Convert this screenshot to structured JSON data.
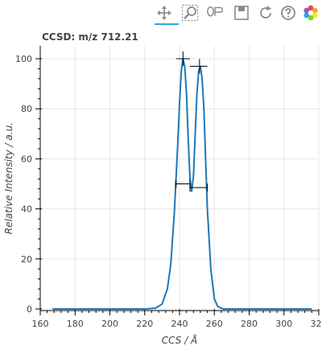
{
  "toolbar": {
    "tools": [
      {
        "name": "pan",
        "icon": "pan-icon",
        "active": true
      },
      {
        "name": "box-zoom",
        "icon": "box-zoom-icon",
        "active": false
      },
      {
        "name": "lasso",
        "icon": "lasso-select-icon",
        "active": false
      },
      {
        "name": "save",
        "icon": "save-icon",
        "active": false
      },
      {
        "name": "reset",
        "icon": "reset-icon",
        "active": false
      },
      {
        "name": "help",
        "icon": "help-icon",
        "active": false
      },
      {
        "name": "bokeh-logo",
        "icon": "bokeh-logo-icon",
        "active": false
      }
    ],
    "active_color": "#26aae1",
    "icon_color": "#8a8a8a"
  },
  "chart_data": {
    "type": "line",
    "title": "CCSD: m/z 712.21",
    "xlabel": "CCS / Å",
    "ylabel": "Relative Intensity / a.u.",
    "xlim": [
      160,
      320
    ],
    "ylim": [
      0,
      100
    ],
    "x_ticks": [
      160,
      180,
      200,
      220,
      240,
      260,
      280,
      300,
      320
    ],
    "y_ticks": [
      0,
      20,
      40,
      60,
      80,
      100
    ],
    "grid": true,
    "line_color": "#1f77b4",
    "series": [
      {
        "x": [
          167,
          180,
          200,
          220,
          226,
          230,
          233,
          235,
          237,
          239,
          240,
          241,
          242,
          243,
          244,
          245,
          246,
          247,
          248,
          249,
          250,
          251,
          252,
          253,
          254,
          255,
          256,
          258,
          260,
          262,
          265,
          270,
          280,
          300,
          316
        ],
        "y": [
          0,
          0,
          0,
          0,
          0.3,
          2,
          8,
          18,
          38,
          66,
          82,
          95,
          100,
          97,
          86,
          68,
          52,
          47,
          53,
          70,
          86,
          95,
          97,
          92,
          80,
          60,
          40,
          16,
          4,
          1,
          0,
          0,
          0,
          0,
          0
        ]
      }
    ],
    "peaks": [
      {
        "center": 242,
        "height": 100,
        "half_width_range": [
          238,
          246
        ]
      },
      {
        "center": 251.5,
        "height": 97,
        "half_width_range": [
          246,
          256
        ]
      }
    ],
    "error_bars": [
      {
        "x": 242,
        "y": 100,
        "x_range": [
          238,
          246
        ]
      },
      {
        "x": 251.5,
        "y": 97,
        "x_range": [
          246,
          256
        ]
      }
    ]
  }
}
